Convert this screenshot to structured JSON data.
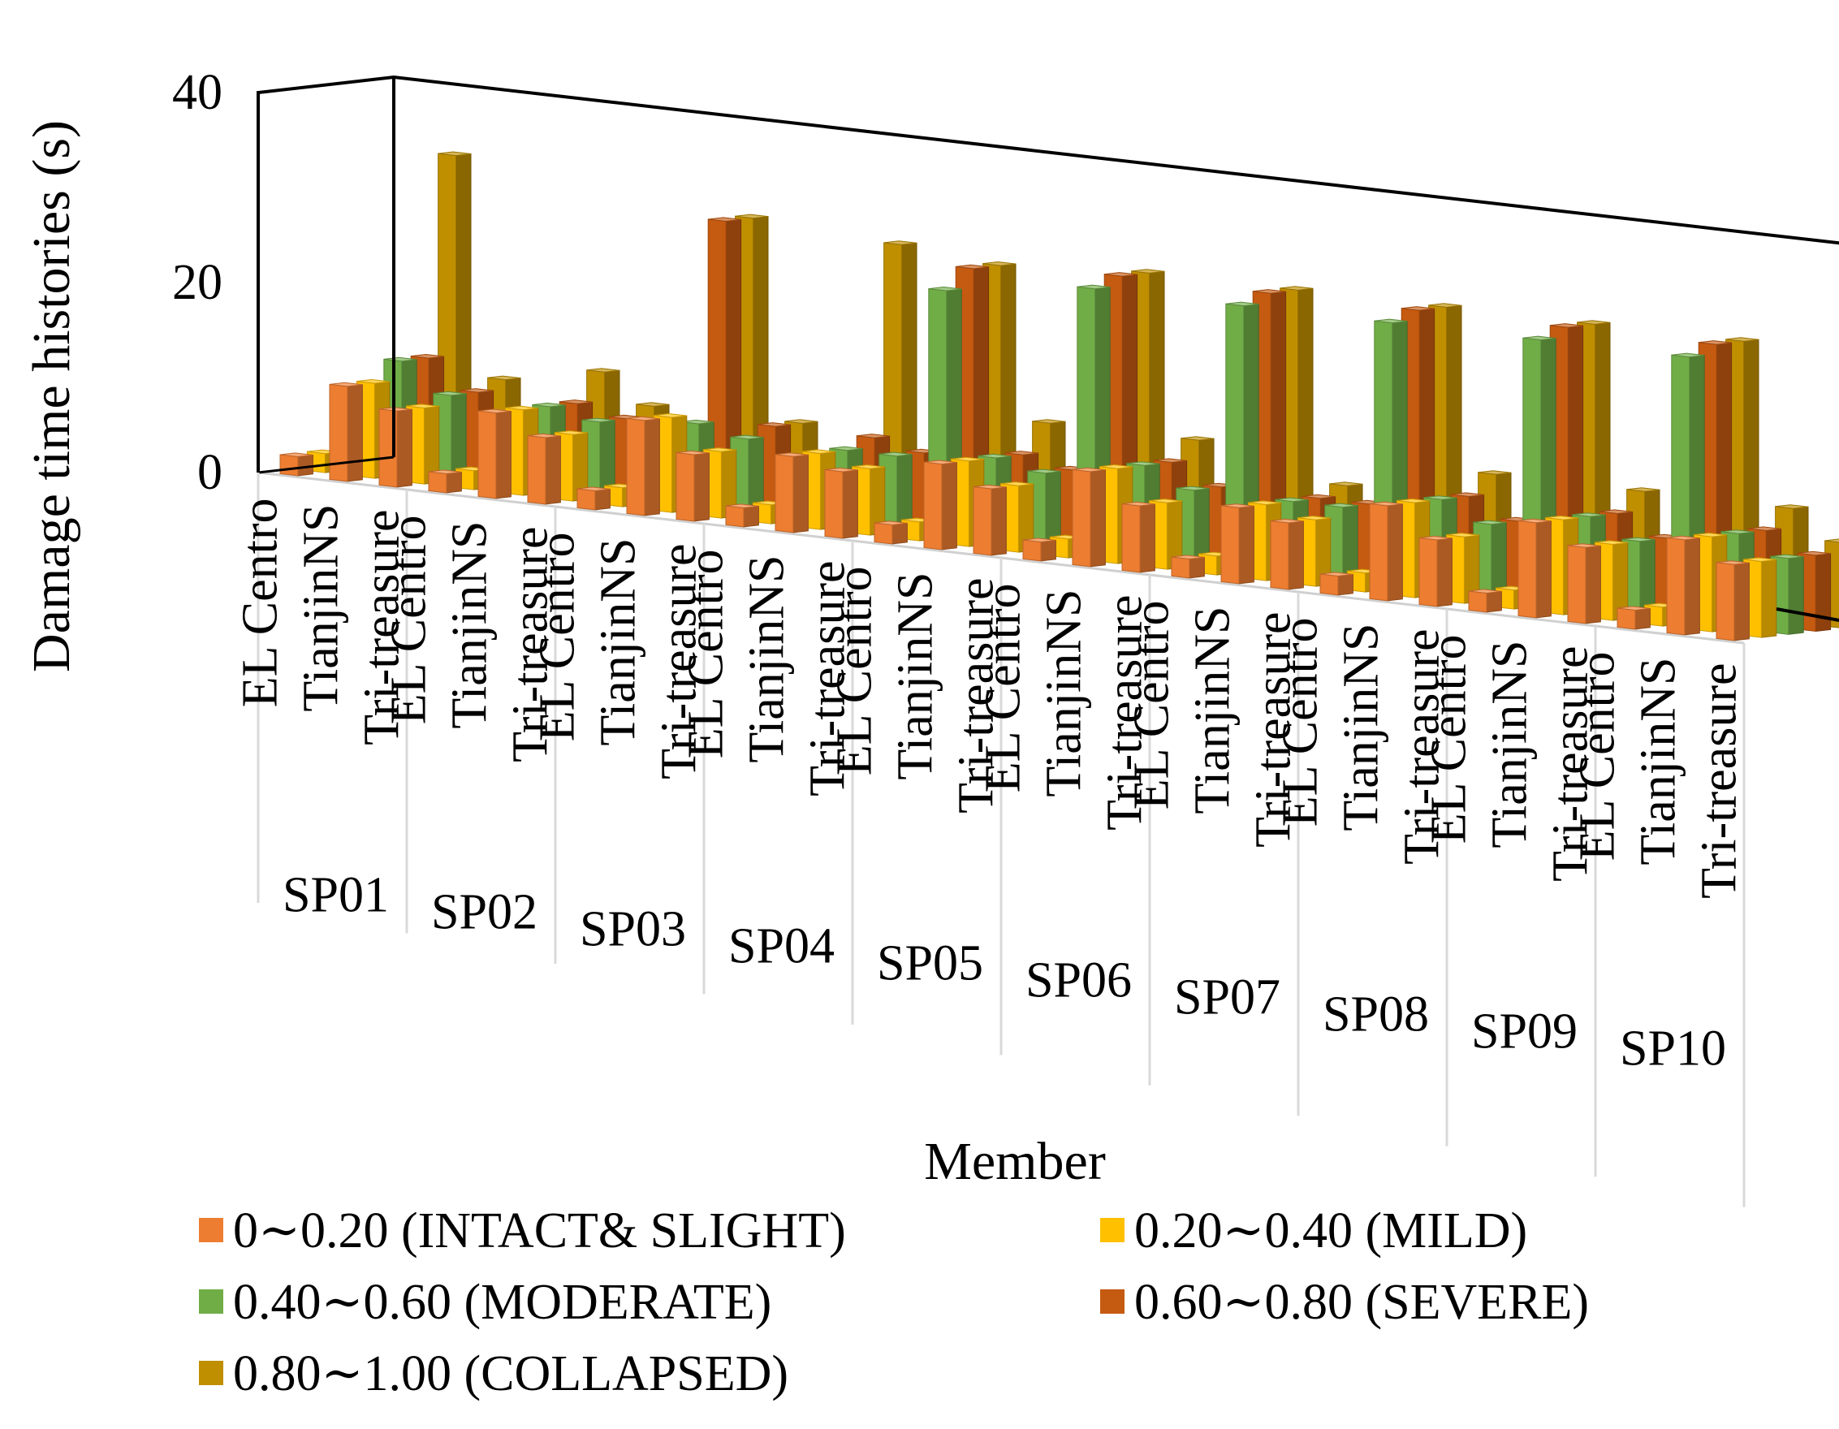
{
  "chart_data": {
    "type": "bar",
    "style": "3d-clustered-column",
    "title": "",
    "xlabel": "Member",
    "ylabel": "Damage time histories (s)",
    "ylim": [
      0,
      40
    ],
    "yticks": [
      "0",
      "20",
      "40"
    ],
    "groups": [
      "SP01",
      "SP02",
      "SP03",
      "SP04",
      "SP05",
      "SP06",
      "SP07",
      "SP08",
      "SP09",
      "SP10"
    ],
    "subcategories": [
      "EL Centro",
      "TianjinNS",
      "Tri-treasure"
    ],
    "series": [
      {
        "name": "0∼0.20 (INTACT& SLIGHT)",
        "color": "#ED7D31",
        "values": [
          2,
          10,
          8,
          2,
          9,
          7,
          2,
          10,
          7,
          2,
          8,
          7,
          2,
          9,
          7,
          2,
          10,
          7,
          2,
          8,
          7,
          2,
          10,
          7,
          2,
          10,
          8,
          2,
          10,
          8
        ]
      },
      {
        "name": "0.20∼0.40 (MILD)",
        "color": "#FFC000",
        "values": [
          2,
          10,
          8,
          2,
          9,
          7,
          2,
          10,
          7,
          2,
          8,
          7,
          2,
          9,
          7,
          2,
          10,
          7,
          2,
          8,
          7,
          2,
          10,
          7,
          2,
          10,
          8,
          2,
          10,
          8
        ]
      },
      {
        "name": "0.40∼0.60 (MODERATE)",
        "color": "#70AD47",
        "values": [
          0,
          12,
          9,
          0,
          9,
          8,
          0,
          9,
          8,
          0,
          8,
          8,
          26,
          9,
          8,
          28,
          10,
          8,
          28,
          8,
          8,
          28,
          10,
          8,
          28,
          10,
          8,
          28,
          10,
          8
        ]
      },
      {
        "name": "0.60∼0.80 (SEVERE)",
        "color": "#C55A11",
        "values": [
          0,
          12,
          9,
          0,
          9,
          8,
          0,
          30,
          9,
          0,
          9,
          8,
          28,
          9,
          8,
          29,
          10,
          8,
          29,
          8,
          8,
          29,
          10,
          8,
          29,
          10,
          8,
          29,
          10,
          8
        ]
      },
      {
        "name": "0.80∼1.00 (COLLAPSED)",
        "color": "#BF8F00",
        "values": [
          0,
          33,
          10,
          0,
          12,
          9,
          0,
          30,
          9,
          0,
          29,
          9,
          28,
          12,
          9,
          29,
          12,
          9,
          29,
          9,
          9,
          29,
          12,
          9,
          29,
          12,
          9,
          29,
          12,
          9
        ]
      }
    ],
    "legend_position": "bottom"
  }
}
